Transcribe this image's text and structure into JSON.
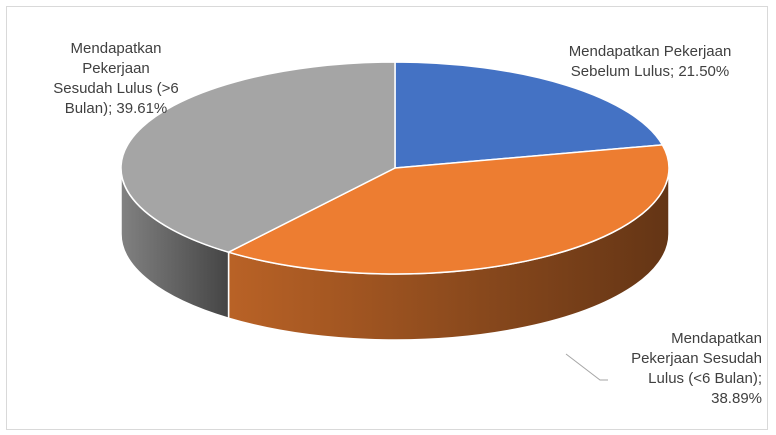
{
  "chart_data": {
    "type": "pie",
    "style": "3d",
    "title": "",
    "legend": "none",
    "slices": [
      {
        "label": "Mendapatkan Pekerjaan Sebelum Lulus",
        "value": 21.5,
        "display": "Mendapatkan Pekerjaan Sebelum Lulus; 21.50%",
        "color": "#4472C4"
      },
      {
        "label": "Mendapatkan Pekerjaan Sesudah Lulus (<6 Bulan)",
        "value": 38.89,
        "display": "Mendapatkan Pekerjaan Sesudah Lulus (<6 Bulan); 38.89%",
        "color": "#ED7D31"
      },
      {
        "label": "Mendapatkan Pekerjaan Sesudah Lulus (>6 Bulan)",
        "value": 39.61,
        "display": "Mendapatkan Pekerjaan Sesudah Lulus (>6 Bulan); 39.61%",
        "color": "#A5A5A5"
      }
    ],
    "data_labels": {
      "slice1_lines": [
        "Mendapatkan Pekerjaan",
        "Sebelum Lulus; 21.50%"
      ],
      "slice2_lines": [
        "Mendapatkan",
        "Pekerjaan Sesudah",
        "Lulus (<6 Bulan);",
        "38.89%"
      ],
      "slice3_lines": [
        "Mendapatkan",
        "Pekerjaan",
        "Sesudah Lulus (>6",
        "Bulan); 39.61%"
      ]
    }
  }
}
